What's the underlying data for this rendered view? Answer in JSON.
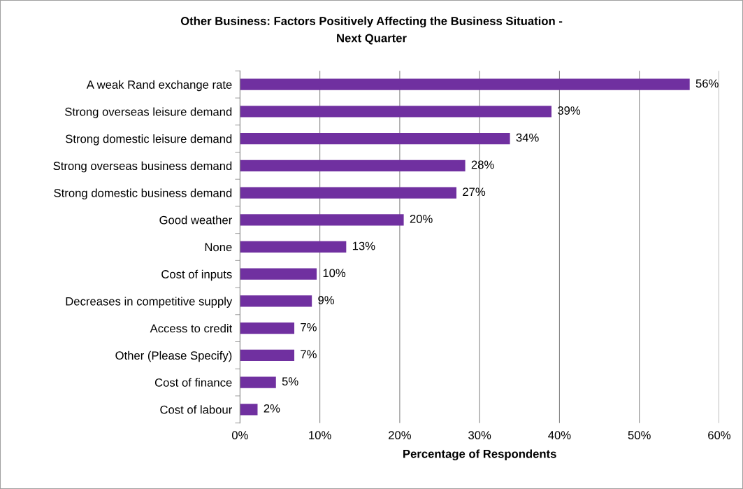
{
  "chart_data": {
    "type": "bar",
    "orientation": "horizontal",
    "title": "Other Business: Factors Positively Affecting the Business Situation -",
    "subtitle": "Next Quarter",
    "xlabel": "Percentage of Respondents",
    "categories": [
      "A weak Rand exchange rate",
      "Strong overseas leisure demand",
      "Strong domestic leisure demand",
      "Strong overseas business demand",
      "Strong domestic business demand",
      "Good weather",
      "None",
      "Cost of inputs",
      "Decreases in competitive supply",
      "Access to credit",
      "Other (Please Specify)",
      "Cost of finance",
      "Cost of labour"
    ],
    "values": [
      56.3,
      39,
      33.8,
      28.2,
      27.1,
      20.5,
      13.3,
      9.6,
      9,
      6.8,
      6.8,
      4.5,
      2.2
    ],
    "value_labels": [
      "56%",
      "39%",
      "34%",
      "28%",
      "27%",
      "20%",
      "13%",
      "10%",
      "9%",
      "7%",
      "7%",
      "5%",
      "2%"
    ],
    "color": "#7030a0",
    "xlim": [
      0,
      60
    ],
    "xticks": [
      {
        "value": 0,
        "label": "0%"
      },
      {
        "value": 10,
        "label": "10%"
      },
      {
        "value": 20,
        "label": "20%"
      },
      {
        "value": 30,
        "label": "30%"
      },
      {
        "value": 40,
        "label": "40%"
      },
      {
        "value": 50,
        "label": "50%"
      },
      {
        "value": 60,
        "label": "60%"
      }
    ],
    "grid": "x",
    "legend": false
  }
}
